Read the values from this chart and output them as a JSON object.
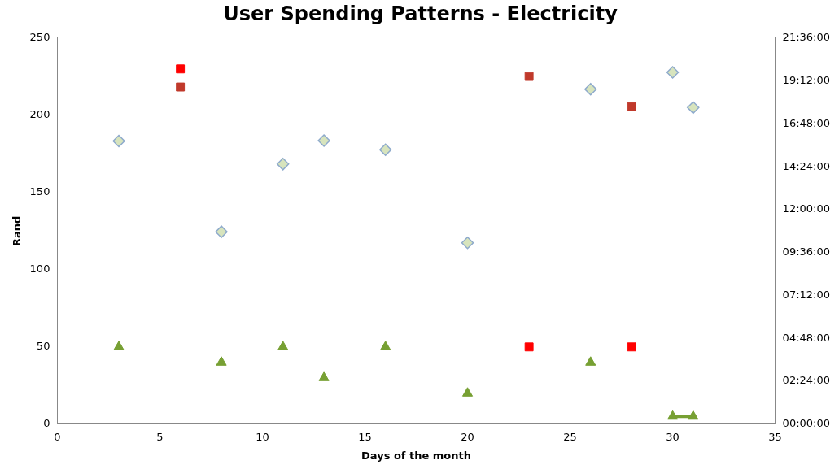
{
  "chart_data": {
    "type": "scatter",
    "title": "User Spending Patterns - Electricity",
    "xlabel": "Days of the month",
    "ylabel": "Rand",
    "xlim": [
      0,
      35
    ],
    "xticks": [
      0,
      5,
      10,
      15,
      20,
      25,
      30,
      35
    ],
    "ylim": [
      0,
      250
    ],
    "yticks": [
      0,
      50,
      100,
      150,
      200,
      250
    ],
    "y2lim": [
      0,
      21.6
    ],
    "y2ticks": [
      {
        "value": 0,
        "label": "00:00:00"
      },
      {
        "value": 2.4,
        "label": "02:24:00"
      },
      {
        "value": 4.8,
        "label": "04:48:00"
      },
      {
        "value": 7.2,
        "label": "07:12:00"
      },
      {
        "value": 9.6,
        "label": "09:36:00"
      },
      {
        "value": 12,
        "label": "12:00:00"
      },
      {
        "value": 14.4,
        "label": "14:24:00"
      },
      {
        "value": 16.8,
        "label": "16:48:00"
      },
      {
        "value": 19.2,
        "label": "19:12:00"
      },
      {
        "value": 21.6,
        "label": "21:36:00"
      }
    ],
    "grid": false,
    "legend": false,
    "series": [
      {
        "color": "#77a033",
        "marker": "triangle",
        "x": [
          3,
          8,
          11,
          13,
          16,
          20,
          26,
          30,
          31
        ],
        "values": [
          50,
          40,
          50,
          30,
          50,
          20,
          40,
          5,
          5
        ]
      },
      {
        "type": "line",
        "color": "#77a033",
        "marker": "none",
        "line_style": "solid",
        "x": [
          30,
          31
        ],
        "values": [
          5,
          5
        ]
      },
      {
        "color": "#ff0000",
        "marker": "square",
        "x": [
          6,
          23,
          28
        ],
        "values": [
          230,
          50,
          50
        ]
      },
      {
        "color": "#c0392b",
        "marker": "square",
        "axis": "y2",
        "x": [
          6,
          23,
          28
        ],
        "values": [
          18.86,
          19.45,
          17.76
        ]
      },
      {
        "color": "#d7e4bd",
        "marker": "diamond",
        "axis": "y2",
        "x": [
          3,
          8,
          11,
          13,
          16,
          20,
          26,
          30,
          31
        ],
        "values": [
          15.84,
          10.76,
          14.55,
          15.86,
          15.35,
          10.14,
          18.74,
          19.68,
          17.71
        ]
      }
    ]
  }
}
